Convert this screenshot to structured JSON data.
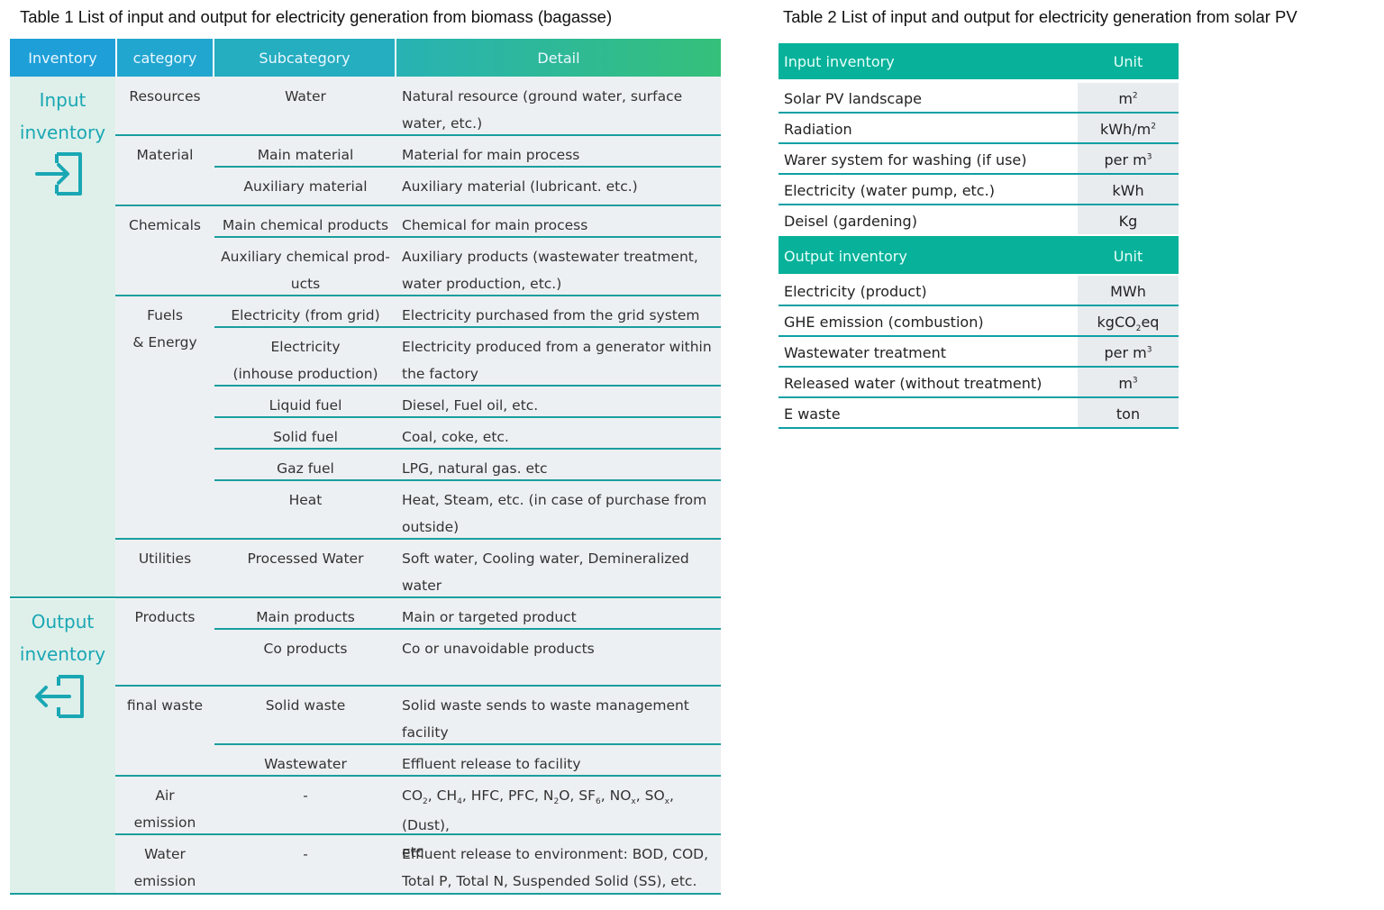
{
  "table1": {
    "caption": "Table 1 List of input and output for electricity generation from biomass (bagasse)",
    "headers": {
      "inventory": "Inventory",
      "category": "category",
      "subcategory": "Subcategory",
      "detail": "Detail"
    },
    "input_label": [
      "Input",
      "inventory"
    ],
    "output_label": [
      "Output",
      "inventory"
    ],
    "rows": {
      "resources_cat": "Resources",
      "water_sub": "Water",
      "water_det": [
        "Natural resource (ground water, surface",
        "water, etc.)"
      ],
      "material_cat": "Material",
      "main_material_sub": "Main material",
      "main_material_det": "Material for main process",
      "aux_material_sub": "Auxiliary material",
      "aux_material_det": "Auxiliary material (lubricant. etc.)",
      "chemicals_cat": "Chemicals",
      "main_chem_sub": "Main chemical products",
      "main_chem_det": "Chemical for main process",
      "aux_chem_sub": [
        "Auxiliary chemical prod-",
        "ucts"
      ],
      "aux_chem_det": [
        "Auxiliary products (wastewater treatment,",
        "water production, etc.)"
      ],
      "fuels_cat": [
        "Fuels",
        "& Energy"
      ],
      "elec_grid_sub": "Electricity (from grid)",
      "elec_grid_det": "Electricity purchased from the grid system",
      "elec_inhouse_sub": [
        "Electricity",
        "(inhouse production)"
      ],
      "elec_inhouse_det": [
        "Electricity produced from a generator within",
        "the factory"
      ],
      "liquid_sub": "Liquid fuel",
      "liquid_det": "Diesel, Fuel oil, etc.",
      "solid_fuel_sub": "Solid fuel",
      "solid_fuel_det": "Coal, coke, etc.",
      "gaz_sub": "Gaz fuel",
      "gaz_det": "LPG, natural gas. etc",
      "heat_sub": "Heat",
      "heat_det": [
        "Heat, Steam, etc. (in case of purchase from",
        "outside)"
      ],
      "utilities_cat": "Utilities",
      "processed_sub": "Processed Water",
      "processed_det": [
        "Soft water, Cooling water, Demineralized",
        "water"
      ],
      "products_cat": "Products",
      "main_products_sub": "Main products",
      "main_products_det": "Main or targeted product",
      "co_products_sub": "Co products",
      "co_products_det": "Co or unavoidable products",
      "final_waste_cat": "final waste",
      "solid_waste_sub": "Solid waste",
      "solid_waste_det": [
        "Solid waste sends to waste management",
        "facility"
      ],
      "wastewater_sub": "Wastewater",
      "wastewater_det": "Effluent release to facility",
      "air_cat": [
        "Air",
        "emission"
      ],
      "air_sub": "-",
      "air_det": {
        "co": "CO",
        "co_sub": "2",
        "ch": ", CH",
        "ch_sub": "4",
        "mid": ", HFC, PFC, N",
        "n_sub": "2",
        "o_sf": "O, SF",
        "sf_sub": "6",
        "no": ", NO",
        "no_sub": "x",
        "so": ", SO",
        "so_sub": "x",
        "tail": ", (Dust),",
        "line2": "etc"
      },
      "water_em_cat": [
        "Water",
        "emission"
      ],
      "water_em_sub": "-",
      "water_em_det": [
        "Effluent release to environment: BOD, COD,",
        "Total P, Total N, Suspended Solid (SS), etc."
      ]
    }
  },
  "table2": {
    "caption": "Table 2 List of input and output for electricity generation from solar PV",
    "input_header": {
      "name": "Input inventory",
      "unit": "Unit"
    },
    "input_rows": [
      {
        "name": "Solar PV landscape",
        "unit": "m",
        "sup": "2"
      },
      {
        "name": "Radiation",
        "unit": "kWh/m",
        "sup": "2"
      },
      {
        "name": "Warer system for washing (if use)",
        "unit": "per m",
        "sup": "3"
      },
      {
        "name": "Electricity (water pump, etc.)",
        "unit": "kWh",
        "sup": ""
      },
      {
        "name": "Deisel (gardening)",
        "unit": "Kg",
        "sup": ""
      }
    ],
    "output_header": {
      "name": "Output inventory",
      "unit": "Unit"
    },
    "output_rows": [
      {
        "name": "Electricity (product)",
        "unit": "MWh",
        "sup": ""
      },
      {
        "name": "GHE emission (combustion)",
        "unit": "kgCO",
        "sub": "2",
        "tail": "eq"
      },
      {
        "name": "Wastewater treatment",
        "unit": "per m",
        "sup": "3"
      },
      {
        "name": "Released water (without treatment)",
        "unit": "m",
        "sup": "3"
      },
      {
        "name": "E waste",
        "unit": "ton",
        "sup": ""
      }
    ]
  },
  "colors": {
    "teal_line": "#1a9e9e",
    "header_teal": "#07b19a",
    "input_bg": "#dff0ea",
    "cell_bg": "#edf0f2"
  },
  "icons": {
    "input": "login-arrow-icon",
    "output": "logout-arrow-icon"
  }
}
